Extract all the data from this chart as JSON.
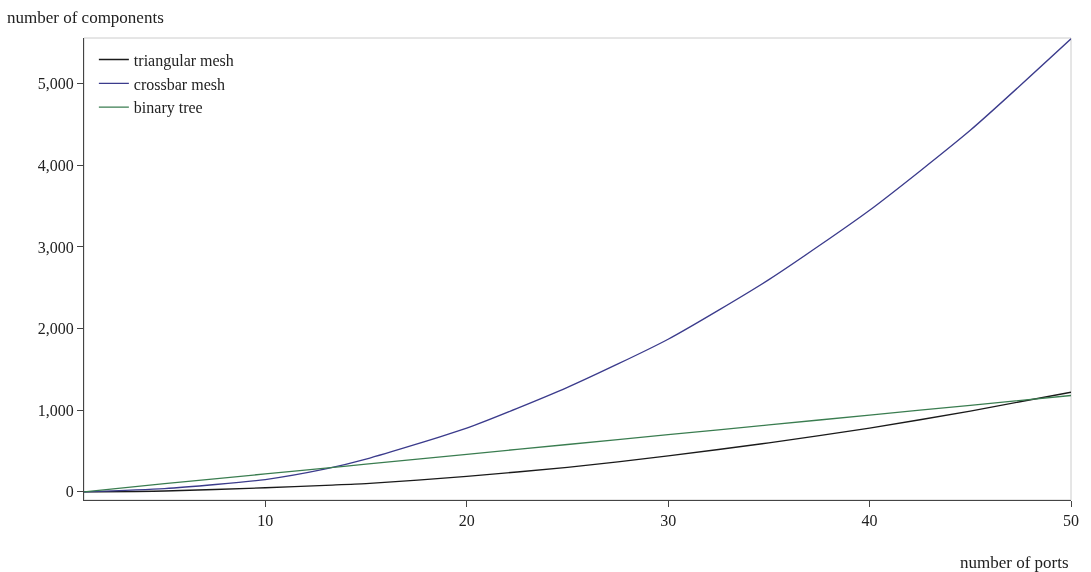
{
  "chart_data": {
    "type": "line",
    "xlabel": "number of ports",
    "ylabel": "number of components",
    "x": [
      1,
      5,
      10,
      13,
      15,
      20,
      25,
      30,
      35,
      40,
      45,
      50
    ],
    "series": [
      {
        "name": "triangular mesh",
        "color": "#1a1a1a",
        "values": [
          0,
          10,
          50,
          80,
          100,
          190,
          300,
          440,
          600,
          780,
          990,
          1220
        ]
      },
      {
        "name": "crossbar mesh",
        "color": "#3b3b8c",
        "values": [
          0,
          40,
          150,
          280,
          400,
          780,
          1280,
          1870,
          2600,
          3450,
          4430,
          5550
        ]
      },
      {
        "name": "binary tree",
        "color": "#3a7d50",
        "values": [
          0,
          100,
          220,
          290,
          340,
          460,
          580,
          700,
          820,
          940,
          1060,
          1180
        ]
      }
    ],
    "xlim": [
      1,
      50
    ],
    "xticks": [
      10,
      20,
      30,
      40,
      50
    ],
    "ylim": [
      -100,
      5560
    ],
    "yticks": [
      {
        "value": 0,
        "label": "0"
      },
      {
        "value": 1000,
        "label": "1,000"
      },
      {
        "value": 2000,
        "label": "2,000"
      },
      {
        "value": 3000,
        "label": "3,000"
      },
      {
        "value": 4000,
        "label": "4,000"
      },
      {
        "value": 5000,
        "label": "5,000"
      }
    ],
    "legend": "top left",
    "grid": false,
    "marker": "none",
    "line_style": "solid"
  }
}
